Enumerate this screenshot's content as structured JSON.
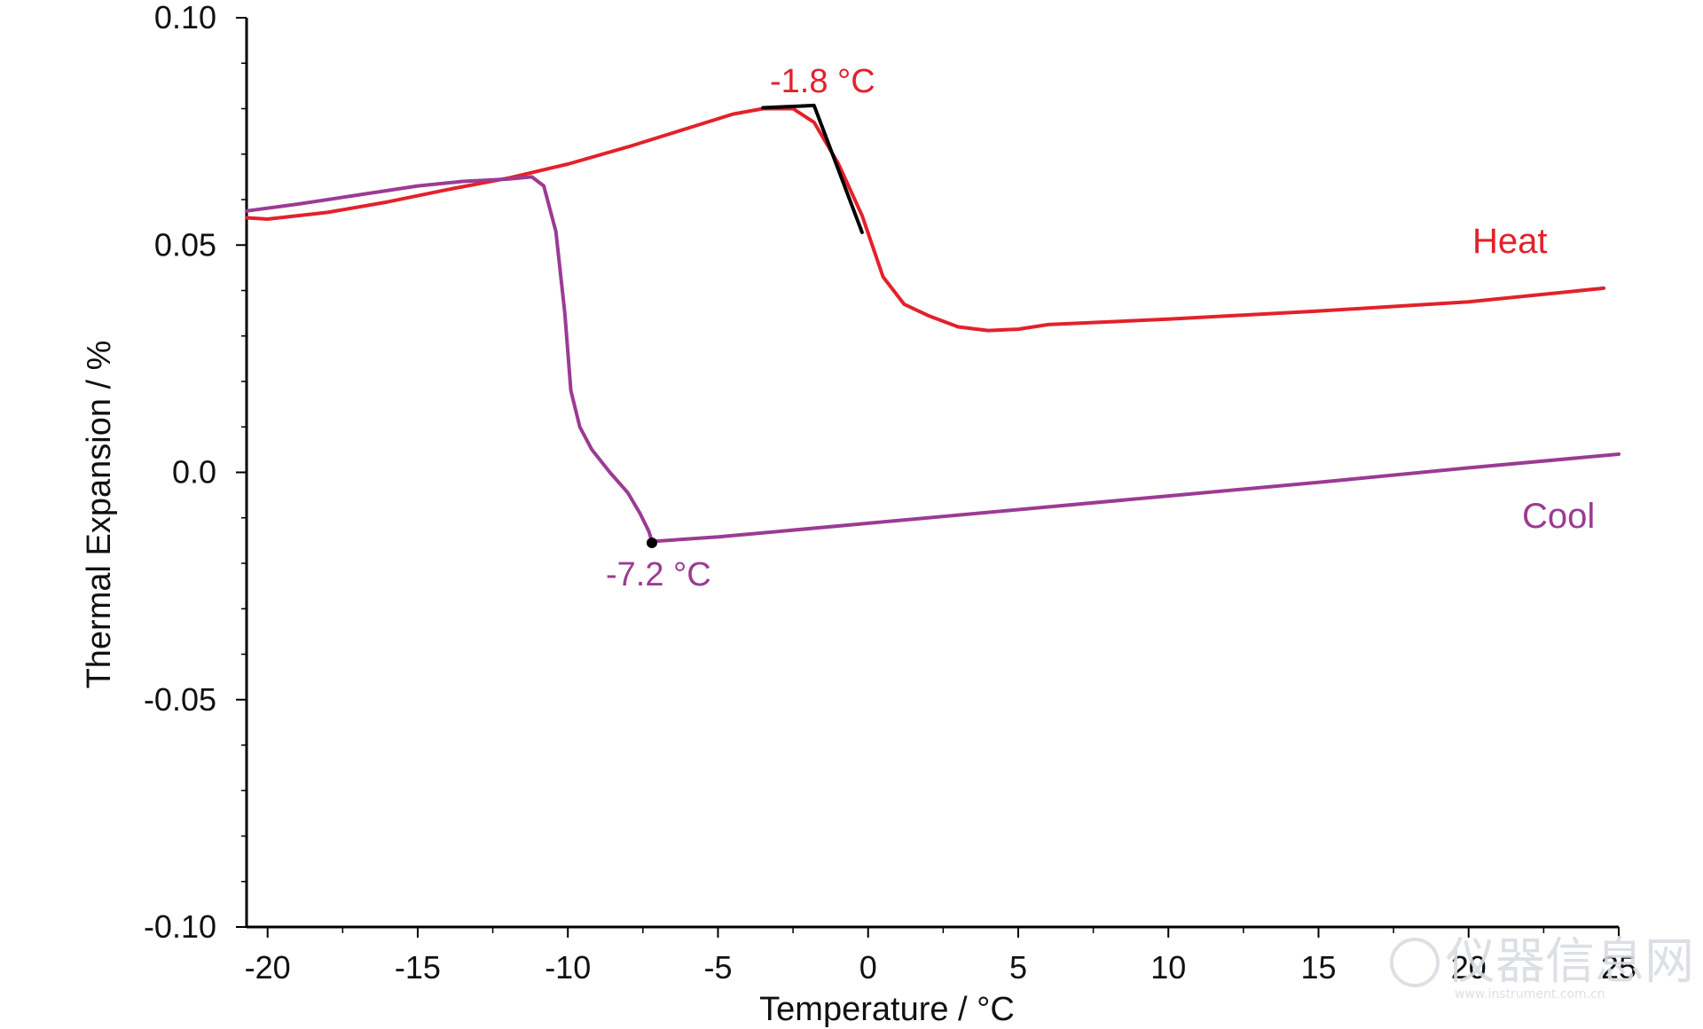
{
  "chart_data": {
    "type": "line",
    "title": "",
    "xlabel": "Temperature / °C",
    "ylabel": "Thermal Expansion / %",
    "xlim": [
      -20.7,
      25
    ],
    "ylim": [
      -0.1,
      0.1
    ],
    "x_ticks": [
      -20,
      -15,
      -10,
      -5,
      0,
      5,
      10,
      15,
      20,
      25
    ],
    "x_tick_labels": [
      "-20",
      "-15",
      "-10",
      "-5",
      "0",
      "5",
      "10",
      "15",
      "20",
      "25"
    ],
    "y_ticks": [
      -0.1,
      -0.05,
      0.0,
      0.05,
      0.1
    ],
    "y_tick_labels": [
      "-0.10",
      "-0.05",
      "0.0",
      "0.05",
      "0.10"
    ],
    "grid": false,
    "series": [
      {
        "name": "Heat",
        "color": "#e3212b",
        "points": [
          [
            -20.7,
            0.056
          ],
          [
            -20.0,
            0.0557
          ],
          [
            -18.0,
            0.0572
          ],
          [
            -16.0,
            0.0595
          ],
          [
            -14.0,
            0.0622
          ],
          [
            -12.0,
            0.0647
          ],
          [
            -10.0,
            0.0678
          ],
          [
            -8.0,
            0.0716
          ],
          [
            -6.0,
            0.0757
          ],
          [
            -4.5,
            0.0788
          ],
          [
            -3.5,
            0.08
          ],
          [
            -2.5,
            0.08
          ],
          [
            -1.8,
            0.077
          ],
          [
            -1.0,
            0.068
          ],
          [
            -0.2,
            0.0565
          ],
          [
            0.5,
            0.043
          ],
          [
            1.2,
            0.037
          ],
          [
            2.0,
            0.0345
          ],
          [
            3.0,
            0.032
          ],
          [
            4.0,
            0.0312
          ],
          [
            5.0,
            0.0315
          ],
          [
            6.0,
            0.0325
          ],
          [
            10.0,
            0.0337
          ],
          [
            15.0,
            0.0355
          ],
          [
            20.0,
            0.0375
          ],
          [
            24.5,
            0.0405
          ]
        ]
      },
      {
        "name": "Cool",
        "color": "#9b3b93",
        "points": [
          [
            -20.7,
            0.0575
          ],
          [
            -19.0,
            0.059
          ],
          [
            -17.0,
            0.061
          ],
          [
            -15.0,
            0.063
          ],
          [
            -13.5,
            0.064
          ],
          [
            -12.0,
            0.0645
          ],
          [
            -11.2,
            0.065
          ],
          [
            -10.8,
            0.063
          ],
          [
            -10.4,
            0.053
          ],
          [
            -10.1,
            0.035
          ],
          [
            -9.9,
            0.018
          ],
          [
            -9.6,
            0.01
          ],
          [
            -9.2,
            0.005
          ],
          [
            -8.6,
            0.0
          ],
          [
            -8.0,
            -0.0045
          ],
          [
            -7.6,
            -0.009
          ],
          [
            -7.3,
            -0.013
          ],
          [
            -7.2,
            -0.0152
          ],
          [
            -5.0,
            -0.0142
          ],
          [
            0.0,
            -0.0112
          ],
          [
            5.0,
            -0.0082
          ],
          [
            10.0,
            -0.0052
          ],
          [
            15.0,
            -0.0022
          ],
          [
            20.0,
            0.001
          ],
          [
            25.0,
            0.004
          ]
        ]
      }
    ],
    "tangent_lines": [
      {
        "color": "#000000",
        "points": [
          [
            -3.5,
            0.0802
          ],
          [
            -1.8,
            0.0807
          ],
          [
            -0.2,
            0.0528
          ]
        ]
      }
    ],
    "markers": [
      {
        "x": -7.2,
        "y": -0.0155,
        "color": "#000000"
      }
    ],
    "annotations": [
      {
        "text": "-1.8 °C",
        "color": "#e3212b"
      },
      {
        "text": "-7.2 °C",
        "color": "#9b3b93"
      }
    ],
    "series_labels": [
      {
        "text": "Heat",
        "color": "#e3212b"
      },
      {
        "text": "Cool",
        "color": "#9b3b93"
      }
    ]
  },
  "watermark": {
    "text": "仪器信息网",
    "sub": "www.instrument.com.cn"
  }
}
